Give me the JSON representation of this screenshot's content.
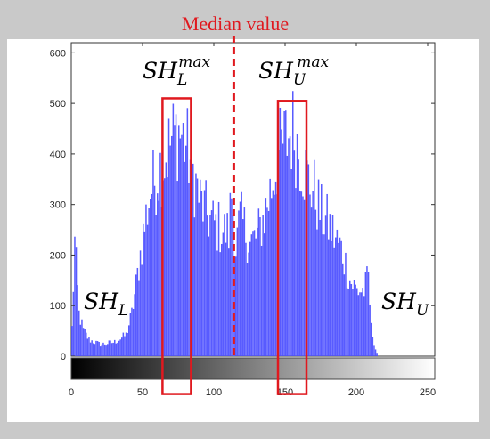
{
  "chart_data": {
    "type": "bar",
    "title": "Median value",
    "xlabel": "",
    "ylabel": "",
    "xlim": [
      0,
      255
    ],
    "ylim": [
      0,
      620
    ],
    "x_ticks": [
      "0",
      "50",
      "100",
      "150",
      "200",
      "250"
    ],
    "y_ticks": [
      "0",
      "100",
      "200",
      "300",
      "400",
      "500",
      "600"
    ],
    "bar_color": "#4a4dff",
    "median_x": 114,
    "median_color": "#e0191f",
    "annotations": {
      "sh_l": {
        "base": "SH",
        "sub": "L"
      },
      "sh_u": {
        "base": "SH",
        "sub": "U"
      },
      "sh_l_max": {
        "base": "SH",
        "sub": "L",
        "sup": "max"
      },
      "sh_u_max": {
        "base": "SH",
        "sub": "U",
        "sup": "max"
      }
    },
    "highlight_ranges": [
      {
        "x": [
          64,
          84
        ],
        "y": [
          -75,
          510
        ]
      },
      {
        "x": [
          145,
          165
        ],
        "y": [
          -75,
          505
        ]
      }
    ],
    "envelope": [
      [
        0,
        60
      ],
      [
        2,
        240
      ],
      [
        5,
        90
      ],
      [
        8,
        55
      ],
      [
        12,
        35
      ],
      [
        20,
        25
      ],
      [
        30,
        30
      ],
      [
        38,
        45
      ],
      [
        42,
        90
      ],
      [
        45,
        150
      ],
      [
        50,
        260
      ],
      [
        55,
        350
      ],
      [
        60,
        390
      ],
      [
        65,
        420
      ],
      [
        70,
        460
      ],
      [
        75,
        480
      ],
      [
        80,
        450
      ],
      [
        85,
        390
      ],
      [
        90,
        330
      ],
      [
        95,
        300
      ],
      [
        100,
        280
      ],
      [
        105,
        270
      ],
      [
        110,
        260
      ],
      [
        112,
        350
      ],
      [
        115,
        230
      ],
      [
        118,
        290
      ],
      [
        120,
        280
      ],
      [
        125,
        240
      ],
      [
        130,
        255
      ],
      [
        135,
        300
      ],
      [
        140,
        360
      ],
      [
        145,
        430
      ],
      [
        150,
        460
      ],
      [
        155,
        480
      ],
      [
        160,
        430
      ],
      [
        165,
        380
      ],
      [
        170,
        350
      ],
      [
        175,
        300
      ],
      [
        180,
        280
      ],
      [
        185,
        250
      ],
      [
        190,
        220
      ],
      [
        195,
        160
      ],
      [
        200,
        140
      ],
      [
        205,
        140
      ],
      [
        208,
        170
      ],
      [
        210,
        60
      ],
      [
        213,
        15
      ],
      [
        215,
        0
      ],
      [
        255,
        0
      ]
    ]
  }
}
